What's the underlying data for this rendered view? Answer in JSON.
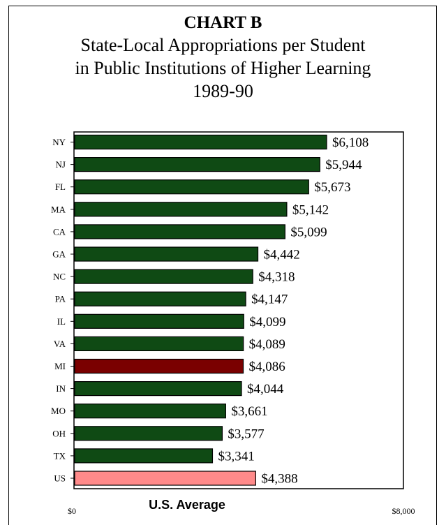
{
  "chart_data": {
    "type": "bar",
    "orientation": "horizontal",
    "tag": "CHART B",
    "title": "State-Local Appropriations per Student\nin Public Institutions of Higher Learning\n1989-90",
    "categories": [
      "NY",
      "NJ",
      "FL",
      "MA",
      "CA",
      "GA",
      "NC",
      "PA",
      "IL",
      "VA",
      "MI",
      "IN",
      "MO",
      "OH",
      "TX",
      "US"
    ],
    "values": [
      6108,
      5944,
      5673,
      5142,
      5099,
      4442,
      4318,
      4147,
      4099,
      4089,
      4086,
      4044,
      3661,
      3577,
      3341,
      4388
    ],
    "value_labels": [
      "$6,108",
      "$5,944",
      "$5,673",
      "$5,142",
      "$5,099",
      "$4,442",
      "$4,318",
      "$4,147",
      "$4,099",
      "$4,089",
      "$4,086",
      "$4,044",
      "$3,661",
      "$3,577",
      "$3,341",
      "$4,388"
    ],
    "xlim": [
      0,
      8000
    ],
    "x_tick_labels": [
      "$0",
      "$8,000"
    ],
    "x_annotation": "U.S. Average",
    "grid": false,
    "colors": {
      "default": "#0f4a14",
      "highlight_MI": "#7a0000",
      "us_average": "#ff8a8a"
    },
    "highlight": [
      "MI"
    ],
    "average_category": "US"
  }
}
